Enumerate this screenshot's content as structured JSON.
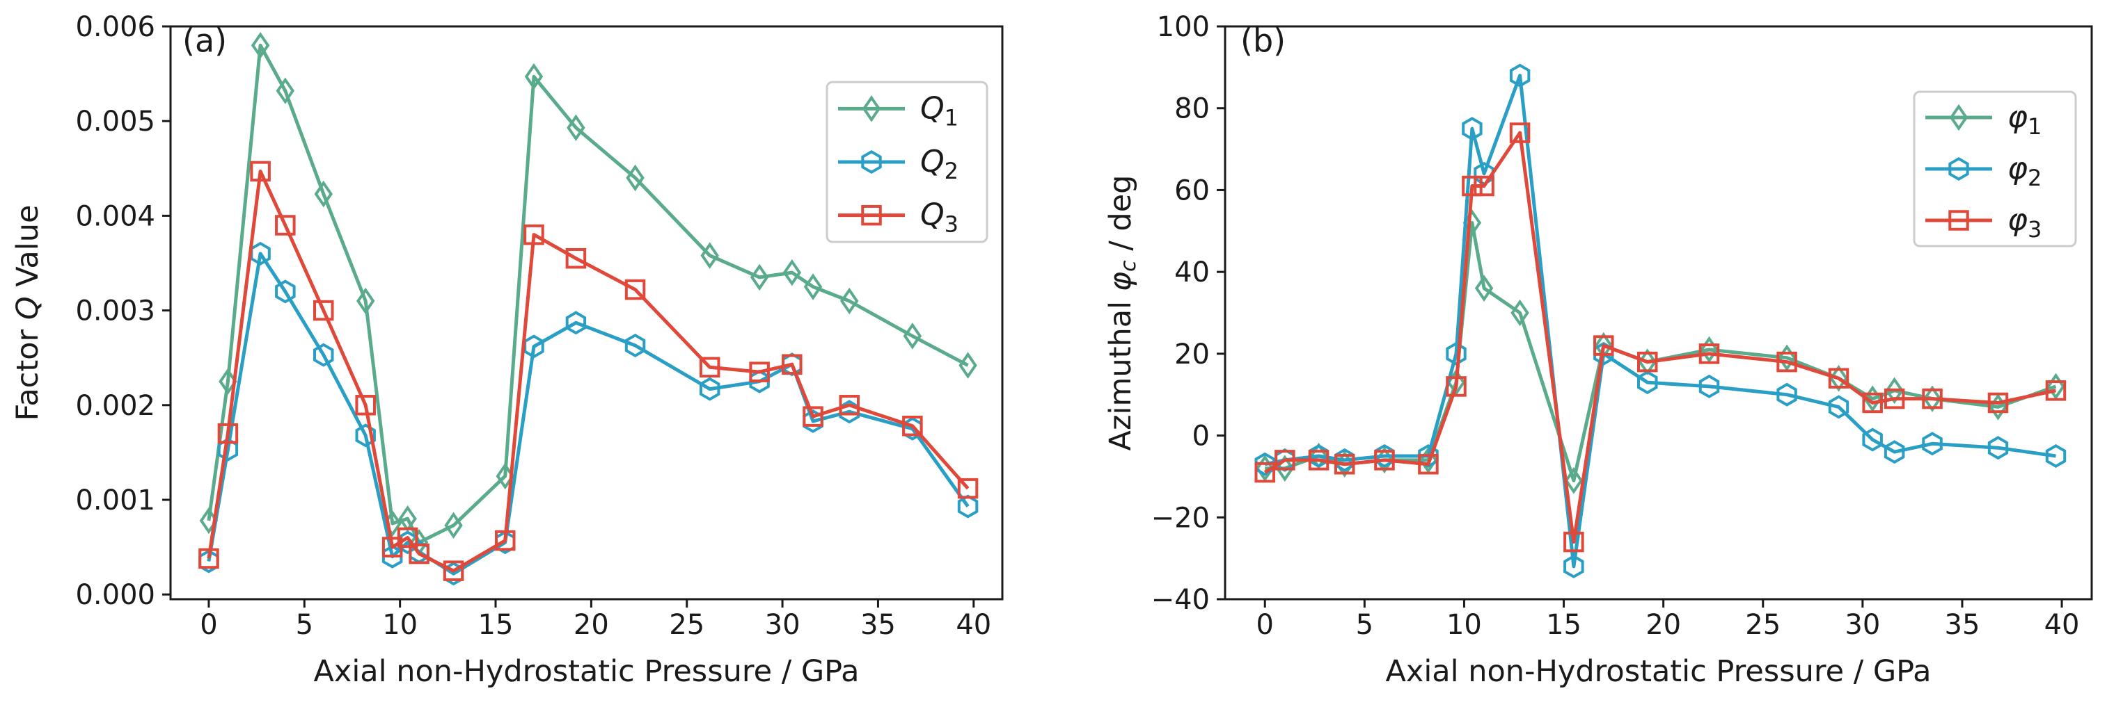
{
  "colors": {
    "series1": "#5aab8c",
    "series2": "#2a9fc6",
    "series3": "#e0483a",
    "axis": "#1a1a1a"
  },
  "chart_data": [
    {
      "type": "line",
      "panel_label": "(a)",
      "xlabel": "Axial non-Hydrostatic Pressure / GPa",
      "ylabel": "Factor Q Value",
      "ylabel_parts": [
        "Factor ",
        "Q",
        " Value"
      ],
      "xlim": [
        -2,
        41.5
      ],
      "ylim": [
        -5e-05,
        0.006
      ],
      "xticks": [
        0,
        5,
        10,
        15,
        20,
        25,
        30,
        35,
        40
      ],
      "xtick_labels": [
        "0",
        "5",
        "10",
        "15",
        "20",
        "25",
        "30",
        "35",
        "40"
      ],
      "yticks": [
        0,
        0.001,
        0.002,
        0.003,
        0.004,
        0.005,
        0.006
      ],
      "ytick_labels": [
        "0.000",
        "0.001",
        "0.002",
        "0.003",
        "0.004",
        "0.005",
        "0.006"
      ],
      "legend_position": "top-right",
      "series": [
        {
          "name": "Q1",
          "label_main": "Q",
          "label_sub": "1",
          "marker": "diamond",
          "color_key": "series1",
          "x": [
            0,
            1,
            2.7,
            4,
            6,
            8.2,
            9.6,
            10.4,
            11,
            12.8,
            15.5,
            17,
            19.2,
            22.3,
            26.2,
            28.8,
            30.5,
            31.6,
            33.5,
            36.8,
            39.7
          ],
          "y": [
            0.00078,
            0.00225,
            0.0058,
            0.00532,
            0.00423,
            0.0031,
            0.00075,
            0.0008,
            0.00055,
            0.00073,
            0.00125,
            0.00547,
            0.00493,
            0.0044,
            0.00358,
            0.00335,
            0.0034,
            0.00325,
            0.0031,
            0.00273,
            0.00242
          ]
        },
        {
          "name": "Q2",
          "label_main": "Q",
          "label_sub": "2",
          "marker": "hexagon",
          "color_key": "series2",
          "x": [
            0,
            1,
            2.7,
            4,
            6,
            8.2,
            9.6,
            10.4,
            11,
            12.8,
            15.5,
            17,
            19.2,
            22.3,
            26.2,
            28.8,
            30.5,
            31.6,
            33.5,
            36.8,
            39.7
          ],
          "y": [
            0.00035,
            0.00153,
            0.0036,
            0.0032,
            0.00253,
            0.00168,
            0.0004,
            0.00055,
            0.00045,
            0.00022,
            0.00055,
            0.00262,
            0.00287,
            0.00263,
            0.00217,
            0.00225,
            0.00243,
            0.00183,
            0.00193,
            0.00175,
            0.00093
          ]
        },
        {
          "name": "Q3",
          "label_main": "Q",
          "label_sub": "3",
          "marker": "square",
          "color_key": "series3",
          "x": [
            0,
            1,
            2.7,
            4,
            6,
            8.2,
            9.6,
            10.4,
            11,
            12.8,
            15.5,
            17,
            19.2,
            22.3,
            26.2,
            28.8,
            30.5,
            31.6,
            33.5,
            36.8,
            39.7
          ],
          "y": [
            0.00038,
            0.0017,
            0.00447,
            0.0039,
            0.003,
            0.002,
            0.0005,
            0.0006,
            0.00043,
            0.00025,
            0.00057,
            0.0038,
            0.00355,
            0.00322,
            0.0024,
            0.00235,
            0.00243,
            0.00188,
            0.002,
            0.00178,
            0.00112
          ]
        }
      ]
    },
    {
      "type": "line",
      "panel_label": "(b)",
      "xlabel": "Axial non-Hydrostatic Pressure / GPa",
      "ylabel": "Azimuthal φc / deg",
      "ylabel_parts": [
        "Azimuthal ",
        "φ",
        "c",
        " / deg"
      ],
      "xlim": [
        -2,
        41.5
      ],
      "ylim": [
        -40,
        100
      ],
      "xticks": [
        0,
        5,
        10,
        15,
        20,
        25,
        30,
        35,
        40
      ],
      "xtick_labels": [
        "0",
        "5",
        "10",
        "15",
        "20",
        "25",
        "30",
        "35",
        "40"
      ],
      "yticks": [
        -40,
        -20,
        0,
        20,
        40,
        60,
        80,
        100
      ],
      "ytick_labels": [
        "−40",
        "−20",
        "0",
        "20",
        "40",
        "60",
        "80",
        "100"
      ],
      "legend_position": "top-right",
      "series": [
        {
          "name": "φ1",
          "label_main": "φ",
          "label_sub": "1",
          "marker": "diamond",
          "color_key": "series1",
          "x": [
            0,
            1,
            2.7,
            4,
            6,
            8.2,
            9.6,
            10.4,
            11,
            12.8,
            15.5,
            17,
            19.2,
            22.3,
            26.2,
            28.8,
            30.5,
            31.6,
            33.5,
            36.8,
            39.7
          ],
          "y": [
            -8,
            -8,
            -5,
            -7,
            -6,
            -6,
            13,
            52,
            36,
            30,
            -11,
            22,
            18,
            21,
            19,
            14,
            9,
            11,
            9,
            7,
            12
          ]
        },
        {
          "name": "φ2",
          "label_main": "φ",
          "label_sub": "2",
          "marker": "hexagon",
          "color_key": "series2",
          "x": [
            0,
            1,
            2.7,
            4,
            6,
            8.2,
            9.6,
            10.4,
            11,
            12.8,
            15.5,
            17,
            19.2,
            22.3,
            26.2,
            28.8,
            30.5,
            31.6,
            33.5,
            36.8,
            39.7
          ],
          "y": [
            -7,
            -6,
            -5,
            -6,
            -5,
            -5,
            20,
            75,
            64,
            88,
            -32,
            20,
            13,
            12,
            10,
            7,
            -1,
            -4,
            -2,
            -3,
            -5
          ]
        },
        {
          "name": "φ3",
          "label_main": "φ",
          "label_sub": "3",
          "marker": "square",
          "color_key": "series3",
          "x": [
            0,
            1,
            2.7,
            4,
            6,
            8.2,
            9.6,
            10.4,
            11,
            12.8,
            15.5,
            17,
            19.2,
            22.3,
            26.2,
            28.8,
            30.5,
            31.6,
            33.5,
            36.8,
            39.7
          ],
          "y": [
            -9,
            -6,
            -6,
            -7,
            -6,
            -7,
            12,
            61,
            61,
            74,
            -26,
            22,
            18,
            20,
            18,
            14,
            8,
            9,
            9,
            8,
            11
          ]
        }
      ]
    }
  ]
}
